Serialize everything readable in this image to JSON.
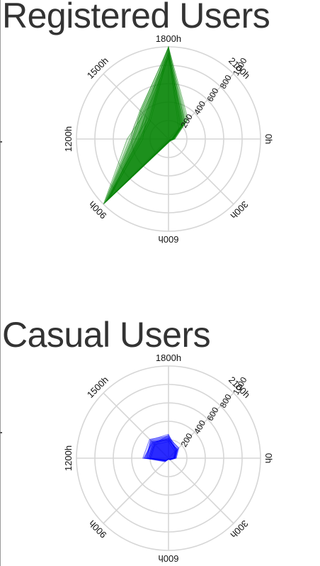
{
  "chart_data": [
    {
      "type": "radar",
      "title": "Registered Users",
      "angular_axis": {
        "unit": "hour",
        "tick_labels": [
          "0h",
          "300h",
          "600h",
          "900h",
          "1200h",
          "1500h",
          "1800h",
          "2100h"
        ],
        "direction": "clockwise",
        "zero_at": "right"
      },
      "radial_axis": {
        "range": [
          0,
          1000
        ],
        "tick_labels": [
          "200",
          "400",
          "600",
          "800",
          "1000"
        ]
      },
      "grid": true,
      "legend": "none",
      "color": "#008000",
      "hours": [
        0,
        3,
        6,
        9,
        12,
        15,
        18,
        21
      ],
      "series": [
        {
          "values": [
            50,
            20,
            30,
            960,
            320,
            300,
            980,
            200
          ]
        },
        {
          "values": [
            40,
            15,
            25,
            900,
            350,
            360,
            1000,
            220
          ]
        },
        {
          "values": [
            60,
            25,
            35,
            980,
            400,
            420,
            940,
            260
          ]
        },
        {
          "values": [
            45,
            18,
            20,
            930,
            280,
            340,
            960,
            180
          ]
        },
        {
          "values": [
            70,
            30,
            40,
            1000,
            450,
            380,
            1000,
            300
          ]
        },
        {
          "values": [
            55,
            22,
            28,
            950,
            380,
            400,
            900,
            240
          ]
        },
        {
          "values": [
            35,
            12,
            22,
            910,
            300,
            280,
            920,
            160
          ]
        },
        {
          "values": [
            65,
            28,
            38,
            990,
            420,
            440,
            980,
            280
          ]
        },
        {
          "values": [
            50,
            20,
            32,
            940,
            360,
            320,
            940,
            210
          ]
        },
        {
          "values": [
            42,
            16,
            26,
            920,
            330,
            360,
            880,
            190
          ]
        },
        {
          "values": [
            58,
            24,
            34,
            970,
            390,
            430,
            1000,
            250
          ]
        },
        {
          "values": [
            48,
            19,
            29,
            955,
            310,
            300,
            910,
            230
          ]
        }
      ]
    },
    {
      "type": "radar",
      "title": "Casual Users",
      "angular_axis": {
        "unit": "hour",
        "tick_labels": [
          "0h",
          "300h",
          "600h",
          "900h",
          "1200h",
          "1500h",
          "1800h",
          "2100h"
        ],
        "direction": "clockwise",
        "zero_at": "right"
      },
      "radial_axis": {
        "range": [
          0,
          1000
        ],
        "tick_labels": [
          "200",
          "400",
          "600",
          "800",
          "1000"
        ]
      },
      "grid": true,
      "legend": "none",
      "color": "#0000ff",
      "hours": [
        0,
        3,
        6,
        9,
        12,
        15,
        18,
        21
      ],
      "series": [
        {
          "values": [
            70,
            20,
            10,
            40,
            220,
            240,
            210,
            130
          ]
        },
        {
          "values": [
            60,
            15,
            8,
            35,
            250,
            270,
            230,
            120
          ]
        },
        {
          "values": [
            80,
            25,
            12,
            50,
            240,
            260,
            190,
            140
          ]
        },
        {
          "values": [
            65,
            18,
            9,
            30,
            200,
            220,
            250,
            110
          ]
        },
        {
          "values": [
            75,
            22,
            11,
            45,
            280,
            290,
            240,
            150
          ]
        },
        {
          "values": [
            55,
            14,
            7,
            28,
            190,
            210,
            180,
            100
          ]
        },
        {
          "values": [
            85,
            26,
            13,
            55,
            260,
            250,
            220,
            160
          ]
        },
        {
          "values": [
            68,
            19,
            10,
            38,
            230,
            280,
            260,
            125
          ]
        },
        {
          "values": [
            72,
            21,
            9,
            42,
            210,
            230,
            200,
            135
          ]
        },
        {
          "values": [
            62,
            17,
            8,
            33,
            270,
            240,
            215,
            115
          ]
        }
      ]
    }
  ]
}
